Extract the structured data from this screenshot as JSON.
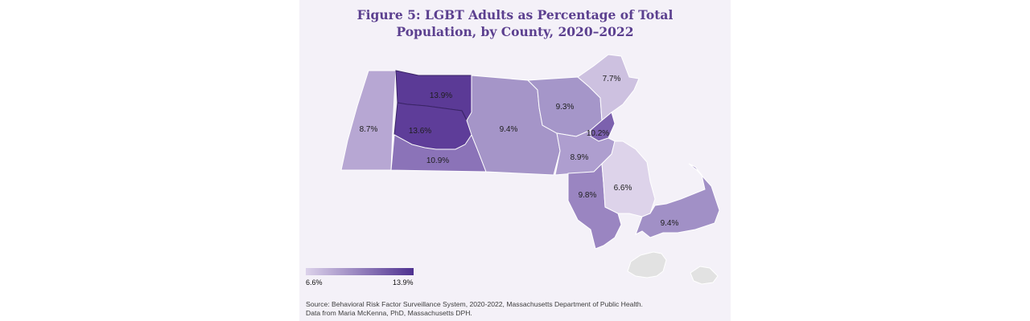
{
  "title": {
    "line1": "Figure 5: LGBT Adults as Percentage of Total",
    "line2": "Population, by County, 2020–2022"
  },
  "regions": [
    {
      "name": "Berkshire",
      "label": "8.7%",
      "value": 8.7,
      "color": "#b7a7d3"
    },
    {
      "name": "Franklin",
      "label": "13.9%",
      "value": 13.9,
      "color": "#5b3a96"
    },
    {
      "name": "Hampshire",
      "label": "13.6%",
      "value": 13.6,
      "color": "#5e3d99"
    },
    {
      "name": "Hampden",
      "label": "10.9%",
      "value": 10.9,
      "color": "#8b73b8"
    },
    {
      "name": "Worcester",
      "label": "9.4%",
      "value": 9.4,
      "color": "#a595c8"
    },
    {
      "name": "Middlesex",
      "label": "9.3%",
      "value": 9.3,
      "color": "#a596c9"
    },
    {
      "name": "Essex",
      "label": "7.7%",
      "value": 7.7,
      "color": "#cdc1e0"
    },
    {
      "name": "Suffolk",
      "label": "10.2%",
      "value": 10.2,
      "color": "#7c61ae"
    },
    {
      "name": "Norfolk",
      "label": "8.9%",
      "value": 8.9,
      "color": "#ae9ecf"
    },
    {
      "name": "Bristol",
      "label": "9.8%",
      "value": 9.8,
      "color": "#9a85c1"
    },
    {
      "name": "Plymouth",
      "label": "6.6%",
      "value": 6.6,
      "color": "#ddd3ea"
    },
    {
      "name": "Barnstable",
      "label": "9.4%",
      "value": 9.4,
      "color": "#a190c6"
    }
  ],
  "no_data_color": "#e2e2e2",
  "legend": {
    "min_label": "6.6%",
    "max_label": "13.9%",
    "min_color": "#dcd2ea",
    "max_color": "#4e3190"
  },
  "source": {
    "line1": "Source: Behavioral Risk Factor Surveillance System, 2020-2022, Massachusetts Department of Public Health.",
    "line2": "Data from Maria McKenna, PhD, Massachusetts DPH."
  }
}
